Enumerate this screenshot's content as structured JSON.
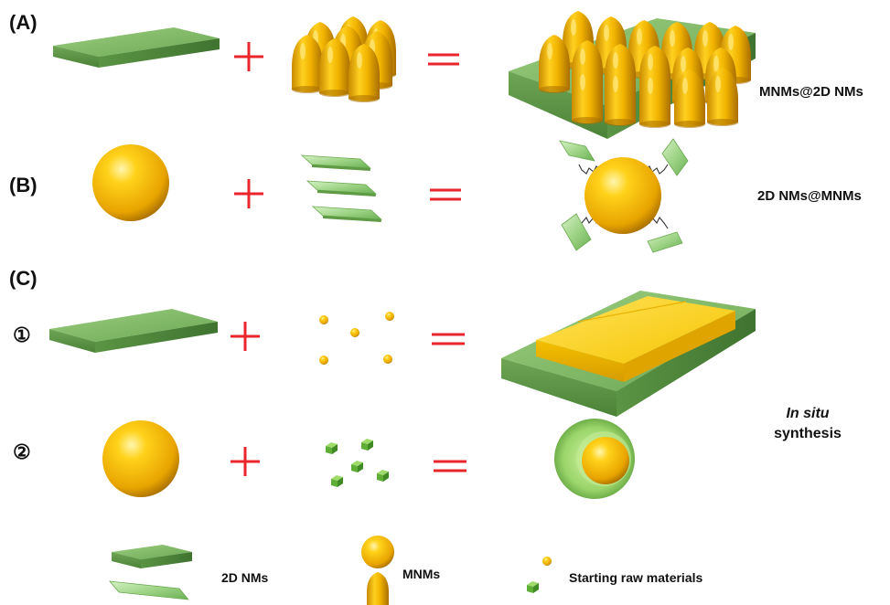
{
  "panels": {
    "a": {
      "label": "(A)",
      "result": "MNMs@2D NMs"
    },
    "b": {
      "label": "(B)",
      "result": "2D NMs@MNMs"
    },
    "c": {
      "label": "(C)",
      "step1": "①",
      "step2": "②",
      "result_italic": "In situ",
      "result": "synthesis"
    }
  },
  "legend": {
    "nm2d": "2D NMs",
    "mnm": "MNMs",
    "raw": "Starting raw materials"
  },
  "colors": {
    "green": "#7fb862",
    "green_dark": "#4f8a3c",
    "gold": "#f2b400",
    "gold_dark": "#b37800",
    "operator_red": "#e8262c"
  }
}
